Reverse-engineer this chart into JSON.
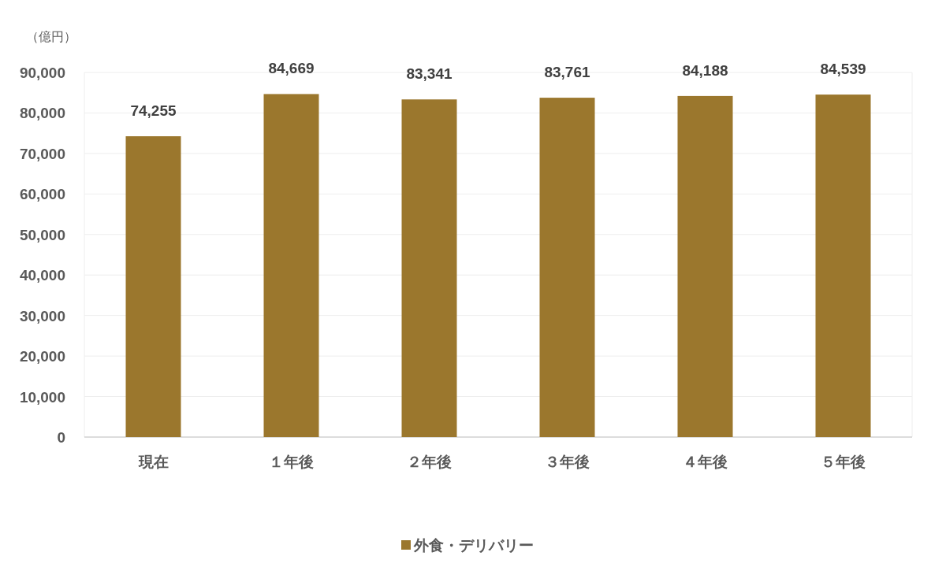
{
  "chart_data": {
    "type": "bar",
    "ylabel": "（億円）",
    "categories": [
      "現在",
      "１年後",
      "２年後",
      "３年後",
      "４年後",
      "５年後"
    ],
    "series": [
      {
        "name": "外食・デリバリー",
        "color": "#9b772d",
        "values": [
          74255,
          84669,
          83341,
          83761,
          84188,
          84539
        ],
        "value_labels": [
          "74,255",
          "84,669",
          "83,341",
          "83,761",
          "84,188",
          "84,539"
        ]
      }
    ],
    "ylim": [
      0,
      90000
    ],
    "yticks": [
      {
        "value": 0,
        "label": "0"
      },
      {
        "value": 10000,
        "label": "10,000"
      },
      {
        "value": 20000,
        "label": "20,000"
      },
      {
        "value": 30000,
        "label": "30,000"
      },
      {
        "value": 40000,
        "label": "40,000"
      },
      {
        "value": 50000,
        "label": "50,000"
      },
      {
        "value": 60000,
        "label": "60,000"
      },
      {
        "value": 70000,
        "label": "70,000"
      },
      {
        "value": 80000,
        "label": "80,000"
      },
      {
        "value": 90000,
        "label": "90,000"
      }
    ],
    "grid": "y",
    "legend": "bottom"
  }
}
